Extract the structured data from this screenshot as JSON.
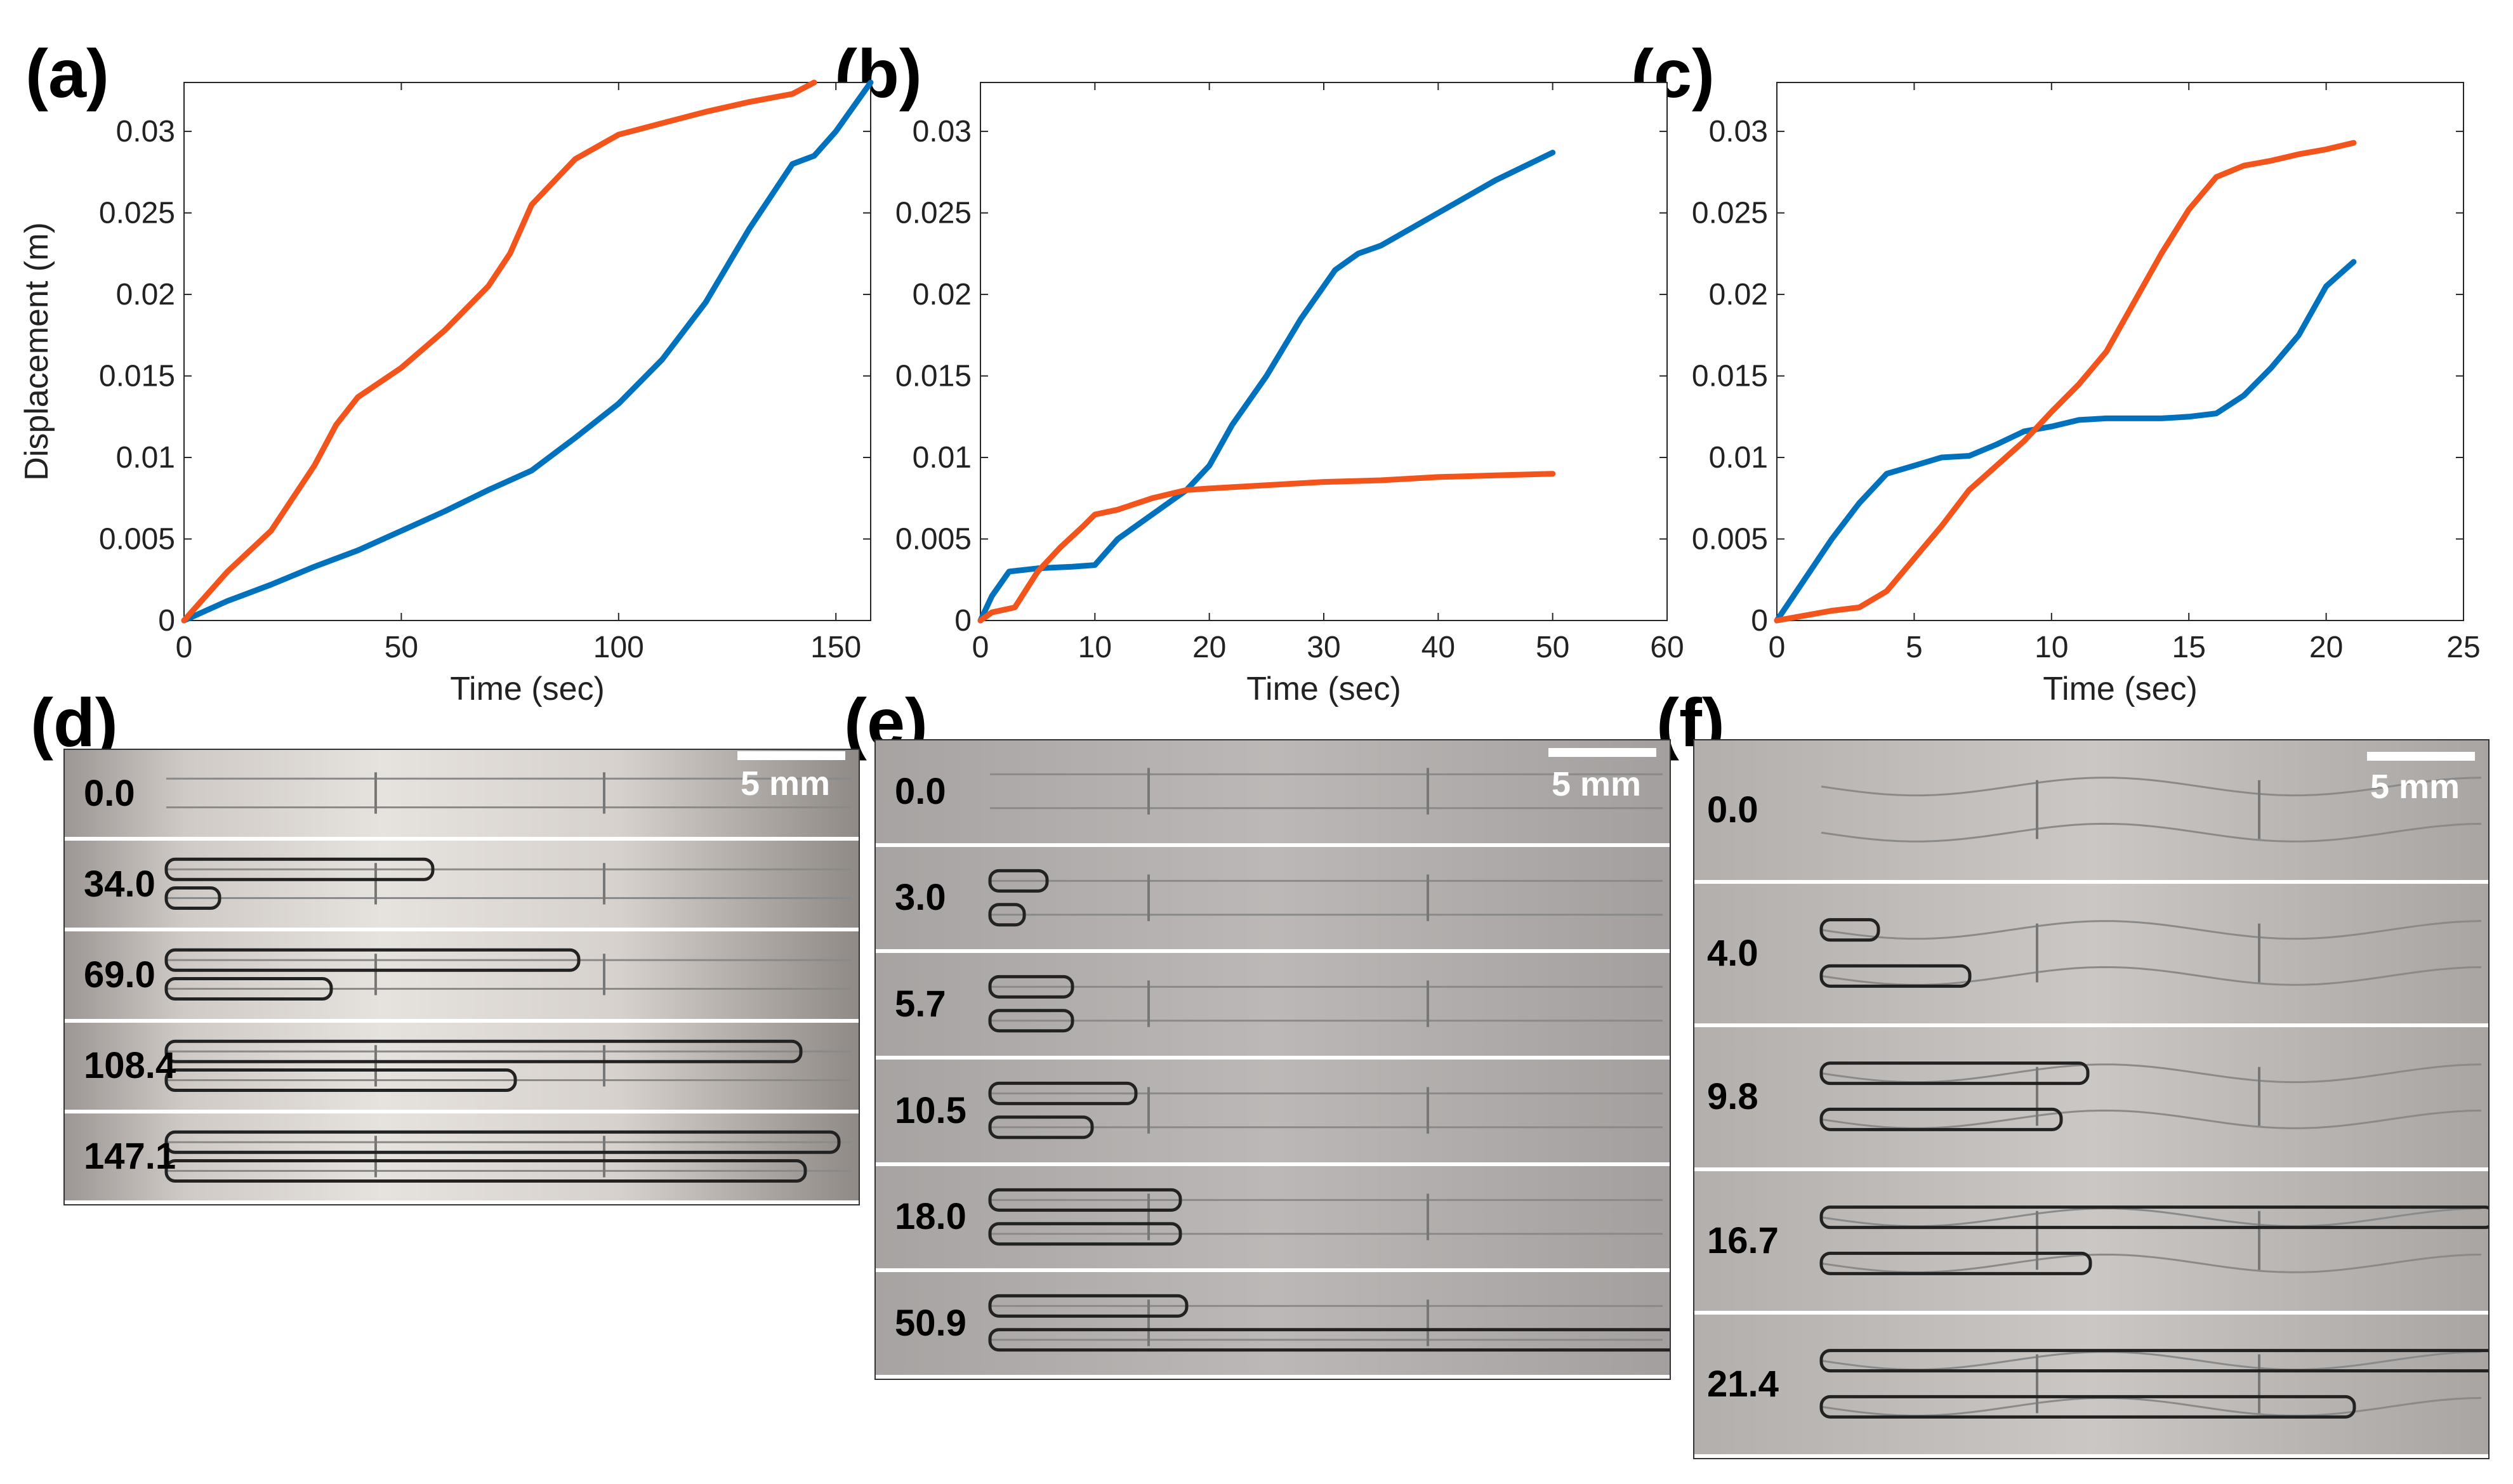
{
  "panels": {
    "a": "(a)",
    "b": "(b)",
    "c": "(c)",
    "d": "(d)",
    "e": "(e)",
    "f": "(f)"
  },
  "colors": {
    "blue": "#0072BD",
    "orange": "#F2541B"
  },
  "chart_data": [
    {
      "type": "line",
      "panel": "(a)",
      "xlabel": "Time (sec)",
      "ylabel": "Displacement (m)",
      "xlim": [
        0,
        158
      ],
      "ylim": [
        0,
        0.033
      ],
      "xticks": [
        0,
        50,
        100,
        150
      ],
      "yticks": [
        0,
        0.005,
        0.01,
        0.015,
        0.02,
        0.025,
        0.03
      ],
      "xticklabels": [
        "0",
        "50",
        "100",
        "150"
      ],
      "yticklabels": [
        "0",
        "0.005",
        "0.01",
        "0.015",
        "0.02",
        "0.025",
        "0.03"
      ],
      "series": [
        {
          "name": "blue",
          "color": "#0072BD",
          "x": [
            0,
            10,
            20,
            30,
            40,
            50,
            60,
            70,
            80,
            90,
            100,
            110,
            120,
            130,
            140,
            145,
            150,
            158
          ],
          "y": [
            0,
            0.0012,
            0.0022,
            0.0033,
            0.0043,
            0.0055,
            0.0067,
            0.008,
            0.0092,
            0.0112,
            0.0133,
            0.016,
            0.0195,
            0.024,
            0.028,
            0.0285,
            0.03,
            0.033
          ]
        },
        {
          "name": "orange",
          "color": "#F2541B",
          "x": [
            0,
            5,
            10,
            20,
            30,
            35,
            40,
            50,
            60,
            70,
            75,
            80,
            90,
            100,
            110,
            120,
            130,
            140,
            145
          ],
          "y": [
            0,
            0.0015,
            0.003,
            0.0055,
            0.0095,
            0.012,
            0.0137,
            0.0155,
            0.0178,
            0.0205,
            0.0225,
            0.0255,
            0.0283,
            0.0298,
            0.0305,
            0.0312,
            0.0318,
            0.0323,
            0.033
          ]
        }
      ]
    },
    {
      "type": "line",
      "panel": "(b)",
      "xlabel": "Time (sec)",
      "ylabel": "",
      "xlim": [
        0,
        60
      ],
      "ylim": [
        0,
        0.033
      ],
      "xticks": [
        0,
        10,
        20,
        30,
        40,
        50,
        60
      ],
      "yticks": [
        0,
        0.005,
        0.01,
        0.015,
        0.02,
        0.025,
        0.03
      ],
      "xticklabels": [
        "0",
        "10",
        "20",
        "30",
        "40",
        "50",
        "60"
      ],
      "yticklabels": [
        "0",
        "0.005",
        "0.01",
        "0.015",
        "0.02",
        "0.025",
        "0.03"
      ],
      "series": [
        {
          "name": "blue",
          "color": "#0072BD",
          "x": [
            0,
            1,
            2.5,
            5,
            8,
            10,
            12,
            15,
            18,
            20,
            22,
            25,
            28,
            31,
            33,
            35,
            40,
            45,
            50
          ],
          "y": [
            0,
            0.0015,
            0.003,
            0.0032,
            0.0033,
            0.0034,
            0.005,
            0.0065,
            0.008,
            0.0095,
            0.012,
            0.015,
            0.0185,
            0.0215,
            0.0225,
            0.023,
            0.025,
            0.027,
            0.0287
          ]
        },
        {
          "name": "orange",
          "color": "#F2541B",
          "x": [
            0,
            1,
            3,
            5,
            7,
            9,
            10,
            12,
            15,
            18,
            20,
            25,
            30,
            35,
            40,
            45,
            50
          ],
          "y": [
            0,
            0.0005,
            0.0008,
            0.003,
            0.0045,
            0.0058,
            0.0065,
            0.0068,
            0.0075,
            0.008,
            0.0081,
            0.0083,
            0.0085,
            0.0086,
            0.0088,
            0.0089,
            0.009
          ]
        }
      ]
    },
    {
      "type": "line",
      "panel": "(c)",
      "xlabel": "Time (sec)",
      "ylabel": "",
      "xlim": [
        0,
        25
      ],
      "ylim": [
        0,
        0.033
      ],
      "xticks": [
        0,
        5,
        10,
        15,
        20,
        25
      ],
      "yticks": [
        0,
        0.005,
        0.01,
        0.015,
        0.02,
        0.025,
        0.03
      ],
      "xticklabels": [
        "0",
        "5",
        "10",
        "15",
        "20",
        "25"
      ],
      "yticklabels": [
        "0",
        "0.005",
        "0.01",
        "0.015",
        "0.02",
        "0.025",
        "0.03"
      ],
      "series": [
        {
          "name": "blue",
          "color": "#0072BD",
          "x": [
            0,
            1,
            2,
            3,
            4,
            5,
            6,
            7,
            8,
            9,
            10,
            11,
            12,
            13,
            14,
            15,
            16,
            17,
            18,
            19,
            20,
            21
          ],
          "y": [
            0,
            0.0025,
            0.005,
            0.0072,
            0.009,
            0.0095,
            0.01,
            0.0101,
            0.0108,
            0.0116,
            0.0119,
            0.0123,
            0.0124,
            0.0124,
            0.0124,
            0.0125,
            0.0127,
            0.0138,
            0.0155,
            0.0175,
            0.0205,
            0.022
          ]
        },
        {
          "name": "orange",
          "color": "#F2541B",
          "x": [
            0,
            1,
            2,
            3,
            4,
            5,
            6,
            7,
            8,
            9,
            10,
            11,
            12,
            13,
            14,
            15,
            16,
            17,
            18,
            19,
            20,
            21
          ],
          "y": [
            0,
            0.0003,
            0.0006,
            0.0008,
            0.0018,
            0.0038,
            0.0058,
            0.008,
            0.0095,
            0.011,
            0.0128,
            0.0145,
            0.0165,
            0.0195,
            0.0225,
            0.0252,
            0.0272,
            0.0279,
            0.0282,
            0.0286,
            0.0289,
            0.0293
          ]
        }
      ]
    }
  ],
  "photos": {
    "d": {
      "scale": "5 mm",
      "frames": [
        "0.0",
        "34.0",
        "69.0",
        "108.4",
        "147.1"
      ]
    },
    "e": {
      "scale": "5 mm",
      "frames": [
        "0.0",
        "3.0",
        "5.7",
        "10.5",
        "18.0",
        "50.9"
      ]
    },
    "f": {
      "scale": "5 mm",
      "frames": [
        "0.0",
        "4.0",
        "9.8",
        "16.7",
        "21.4"
      ]
    }
  }
}
